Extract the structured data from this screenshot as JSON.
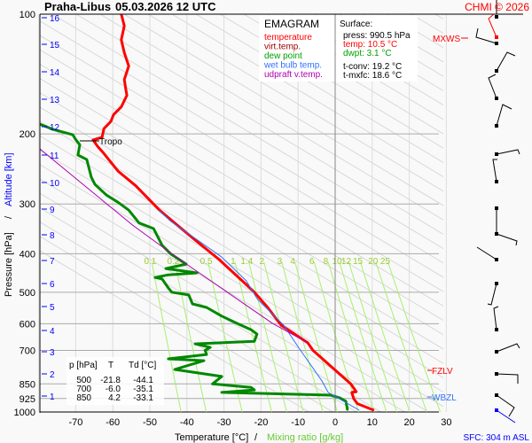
{
  "header": {
    "station": "Praha-Libus",
    "datetime": "05.03.2026 12 UTC",
    "copyright": "CHMI © 2026"
  },
  "legend": {
    "title": "EMAGRAM",
    "items": [
      {
        "label": "temperature",
        "color": "#ff0000"
      },
      {
        "label": "virt.temp.",
        "color": "#a00000"
      },
      {
        "label": "dew point",
        "color": "#00a000"
      },
      {
        "label": "wet bulb temp.",
        "color": "#3070ff"
      },
      {
        "label": "udpraft v.temp.",
        "color": "#b000b0"
      }
    ]
  },
  "surface": {
    "title": "Surface:",
    "press": "press: 990.5 hPa",
    "temp": "temp: 10.5 °C",
    "dwpt": "dwpt: 3.1 °C",
    "tconv": "t-conv: 19.2 °C",
    "tmxfc": "t-mxfc: 18.6 °C"
  },
  "table": {
    "headers": [
      "p [hPa]",
      "T",
      "Td [°C]"
    ],
    "rows": [
      [
        "500",
        "-21.8",
        "-44.1"
      ],
      [
        "700",
        "-6.0",
        "-35.1"
      ],
      [
        "850",
        "4.2",
        "-33.1"
      ]
    ]
  },
  "markers": {
    "mxws": "MXWS",
    "fzlv": "FZLV",
    "wbzl": "WBZL",
    "tropo": "Tropo",
    "sfc": "SFC: 304 m ASL"
  },
  "chart_data": {
    "type": "line",
    "title": "Praha-Libus 05.03.2026 12 UTC",
    "xlabel": "Temperature [°C]",
    "xlabel2": "Mixing ratio [g/kg]",
    "ylabel": "Pressure [hPa]",
    "ylabel2": "Altitude [km]",
    "separator": "/",
    "xlim": [
      -80,
      35
    ],
    "ylim": [
      1000,
      100
    ],
    "x_ticks": [
      "-70",
      "-60",
      "-50",
      "-40",
      "-30",
      "-20",
      "-10",
      "0",
      "10",
      "20",
      "30"
    ],
    "pressure_ticks": [
      "100",
      "200",
      "300",
      "400",
      "500",
      "600",
      "700",
      "850",
      "925",
      "1000"
    ],
    "altitude_ticks": [
      "1",
      "2",
      "3",
      "4",
      "5",
      "6",
      "7",
      "8",
      "9",
      "10",
      "11",
      "12",
      "13",
      "14",
      "15",
      "16"
    ],
    "mixing_ratio_labels": [
      "0.1",
      "0.2",
      "0.5",
      "1",
      "1.4",
      "2",
      "3",
      "4",
      "6",
      "8",
      "10",
      "12",
      "15",
      "20",
      "25"
    ],
    "series": [
      {
        "name": "temperature",
        "color": "#ff0000",
        "points": [
          [
            990.5,
            10.5
          ],
          [
            953,
            6
          ],
          [
            926,
            5
          ],
          [
            893,
            4.5
          ],
          [
            889,
            5.7
          ],
          [
            850,
            4.2
          ],
          [
            782,
            -0.2
          ],
          [
            700,
            -6
          ],
          [
            670,
            -7.4
          ],
          [
            605,
            -14.6
          ],
          [
            546,
            -18.2
          ],
          [
            500,
            -21.8
          ],
          [
            468,
            -25.1
          ],
          [
            414,
            -31.3
          ],
          [
            374,
            -37.1
          ],
          [
            335,
            -43.3
          ],
          [
            311,
            -47.4
          ],
          [
            270,
            -53.8
          ],
          [
            248,
            -58.6
          ],
          [
            224,
            -62.4
          ],
          [
            215,
            -64.1
          ],
          [
            207,
            -65.3
          ],
          [
            204,
            -62.9
          ],
          [
            194,
            -62.4
          ],
          [
            186,
            -60.5
          ],
          [
            179,
            -59.8
          ],
          [
            171,
            -57.7
          ],
          [
            160,
            -56.2
          ],
          [
            154,
            -56.5
          ],
          [
            146,
            -56.9
          ],
          [
            135,
            -55.7
          ],
          [
            125,
            -56.9
          ],
          [
            116,
            -57.7
          ],
          [
            107,
            -56.9
          ],
          [
            100,
            -57.7
          ]
        ]
      },
      {
        "name": "dew point",
        "color": "#008800",
        "points": [
          [
            990.5,
            3.1
          ],
          [
            984,
            3.3
          ],
          [
            940,
            2.9
          ],
          [
            921,
            1.2
          ],
          [
            907,
            -1.2
          ],
          [
            893,
            -30.6
          ],
          [
            880,
            -21.8
          ],
          [
            867,
            -22.7
          ],
          [
            850,
            -33.1
          ],
          [
            814,
            -30.6
          ],
          [
            782,
            -43.3
          ],
          [
            743,
            -35.4
          ],
          [
            735,
            -45
          ],
          [
            717,
            -34.7
          ],
          [
            700,
            -35.1
          ],
          [
            688,
            -33.7
          ],
          [
            674,
            -37.8
          ],
          [
            664,
            -21.8
          ],
          [
            637,
            -21.1
          ],
          [
            621,
            -22.7
          ],
          [
            598,
            -26.6
          ],
          [
            574,
            -30.6
          ],
          [
            546,
            -34.7
          ],
          [
            535,
            -38.5
          ],
          [
            508,
            -39.5
          ],
          [
            500,
            -44.1
          ],
          [
            488,
            -45
          ],
          [
            463,
            -46.7
          ],
          [
            459,
            -48.6
          ],
          [
            452,
            -45
          ],
          [
            447,
            -37.3
          ],
          [
            436,
            -45.7
          ],
          [
            425,
            -40.2
          ],
          [
            401,
            -44.3
          ],
          [
            381,
            -46.7
          ],
          [
            359,
            -48.1
          ],
          [
            346,
            -49
          ],
          [
            335,
            -52.9
          ],
          [
            311,
            -55.7
          ],
          [
            297,
            -58.6
          ],
          [
            285,
            -61.7
          ],
          [
            268,
            -64.8
          ],
          [
            257,
            -65.8
          ],
          [
            232,
            -67
          ],
          [
            226,
            -69.4
          ],
          [
            213,
            -68.9
          ],
          [
            206,
            -70.1
          ],
          [
            201,
            -70.8
          ],
          [
            195,
            -76
          ],
          [
            189,
            -79.7
          ]
        ]
      },
      {
        "name": "wet bulb temp.",
        "color": "#3070ff",
        "points": [
          [
            990,
            6.5
          ],
          [
            893,
            -1.9
          ],
          [
            835,
            -3.6
          ],
          [
            690,
            -9.8
          ],
          [
            605,
            -13.9
          ],
          [
            520,
            -21
          ],
          [
            468,
            -24
          ],
          [
            408,
            -30.6
          ],
          [
            362,
            -38.5
          ],
          [
            332,
            -44.3
          ],
          [
            311,
            -47.6
          ]
        ]
      },
      {
        "name": "udpraft v.temp.",
        "color": "#b000b0",
        "points": [
          [
            670,
            -7.4
          ],
          [
            598,
            -17
          ],
          [
            414,
            -41.9
          ],
          [
            340,
            -54.5
          ],
          [
            218,
            -79.7
          ]
        ]
      }
    ]
  }
}
